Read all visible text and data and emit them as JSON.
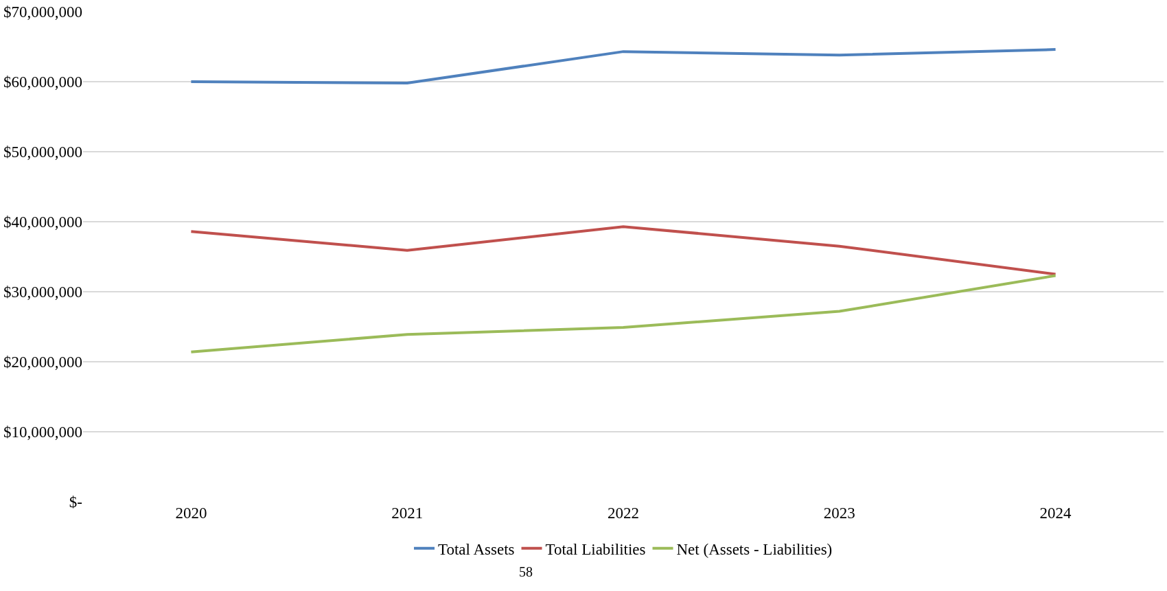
{
  "chart_data": {
    "type": "line",
    "categories": [
      "2020",
      "2021",
      "2022",
      "2023",
      "2024"
    ],
    "series": [
      {
        "name": "Total Assets",
        "color": "#4f81bd",
        "values": [
          60000000,
          59800000,
          64300000,
          63800000,
          64600000
        ]
      },
      {
        "name": "Total Liabilities",
        "color": "#c0504d",
        "values": [
          38600000,
          35900000,
          39300000,
          36500000,
          32500000
        ]
      },
      {
        "name": "Net (Assets - Liabilities)",
        "color": "#9bbb59",
        "values": [
          21400000,
          23900000,
          24900000,
          27200000,
          32300000
        ]
      }
    ],
    "ylim": [
      0,
      70000000
    ],
    "yticks": [
      {
        "value": 0,
        "label": "$-"
      },
      {
        "value": 10000000,
        "label": "$10,000,000"
      },
      {
        "value": 20000000,
        "label": "$20,000,000"
      },
      {
        "value": 30000000,
        "label": "$30,000,000"
      },
      {
        "value": 40000000,
        "label": "$40,000,000"
      },
      {
        "value": 50000000,
        "label": "$50,000,000"
      },
      {
        "value": 60000000,
        "label": "$60,000,000"
      },
      {
        "value": 70000000,
        "label": "$70,000,000"
      }
    ],
    "grid": "y",
    "legend": "bottom",
    "marker": "none",
    "line_style": "solid",
    "annotations": [
      "58"
    ]
  }
}
